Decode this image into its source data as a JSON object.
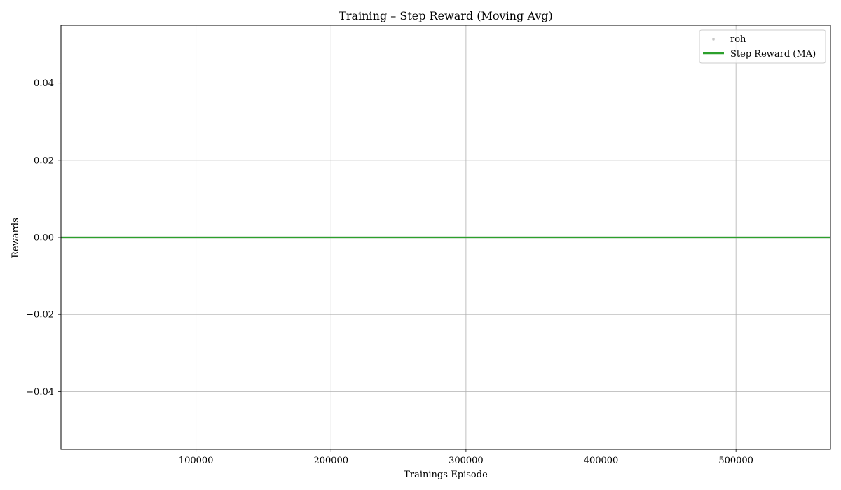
{
  "chart_data": {
    "type": "line",
    "title": "Training – Step Reward (Moving Avg)",
    "xlabel": "Trainings-Episode",
    "ylabel": "Rewards",
    "xlim": [
      1,
      570000
    ],
    "ylim": [
      -0.055,
      0.055
    ],
    "x_ticks": [
      100000,
      200000,
      300000,
      400000,
      500000
    ],
    "x_tick_labels": [
      "100000",
      "200000",
      "300000",
      "400000",
      "500000"
    ],
    "y_ticks": [
      0.04,
      0.02,
      0.0,
      -0.02,
      -0.04
    ],
    "y_tick_labels": [
      "0.04",
      "0.02",
      "0.00",
      "−0.02",
      "−0.04"
    ],
    "grid": true,
    "legend_position": "upper right",
    "series": [
      {
        "name": "roh",
        "kind": "scatter",
        "color": "#c8c8c8",
        "x": [
          1,
          570000
        ],
        "y": [
          0,
          0
        ]
      },
      {
        "name": "Step Reward (MA)",
        "kind": "line",
        "color": "#2ca02c",
        "x": [
          1,
          570000
        ],
        "y": [
          0,
          0
        ]
      }
    ]
  }
}
